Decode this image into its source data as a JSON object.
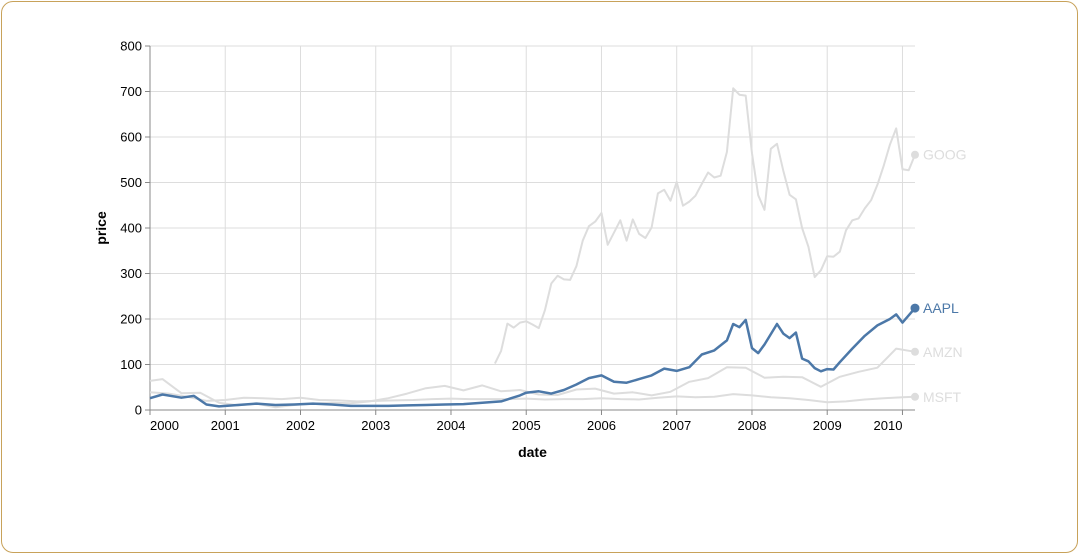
{
  "chart_data": {
    "type": "line",
    "xlabel": "date",
    "ylabel": "price",
    "ylim": [
      0,
      800
    ],
    "xlim": [
      "2000-01-01",
      "2010-03-01"
    ],
    "x_ticks": [
      "2000",
      "2001",
      "2002",
      "2003",
      "2004",
      "2005",
      "2006",
      "2007",
      "2008",
      "2009",
      "2010"
    ],
    "y_ticks": [
      0,
      100,
      200,
      300,
      400,
      500,
      600,
      700,
      800
    ],
    "grid": true,
    "legend": "end-of-line labels",
    "highlight_series": "AAPL",
    "colors": {
      "highlight": "#4c78a8",
      "muted": "#dddddd"
    },
    "series": [
      {
        "name": "MSFT",
        "dates": [
          "2000-01",
          "2000-04",
          "2000-07",
          "2000-10",
          "2001-01",
          "2001-04",
          "2001-07",
          "2001-10",
          "2002-01",
          "2002-04",
          "2002-07",
          "2002-10",
          "2003-01",
          "2003-04",
          "2003-07",
          "2003-10",
          "2004-01",
          "2004-04",
          "2004-07",
          "2004-10",
          "2005-01",
          "2005-04",
          "2005-07",
          "2005-10",
          "2006-01",
          "2006-04",
          "2006-07",
          "2006-10",
          "2007-01",
          "2007-04",
          "2007-07",
          "2007-10",
          "2008-01",
          "2008-04",
          "2008-07",
          "2008-10",
          "2009-01",
          "2009-04",
          "2009-07",
          "2009-10",
          "2010-01",
          "2010-03"
        ],
        "values": [
          39,
          36,
          29,
          20,
          22,
          27,
          26,
          24,
          27,
          22,
          21,
          19,
          20,
          21,
          22,
          24,
          25,
          24,
          24,
          24,
          25,
          23,
          24,
          24,
          26,
          24,
          23,
          27,
          30,
          28,
          29,
          35,
          32,
          28,
          26,
          22,
          17,
          19,
          23,
          26,
          28,
          29
        ]
      },
      {
        "name": "AMZN",
        "dates": [
          "2000-01",
          "2000-03",
          "2000-06",
          "2000-09",
          "2000-12",
          "2001-03",
          "2001-06",
          "2001-09",
          "2001-12",
          "2002-03",
          "2002-06",
          "2002-09",
          "2002-12",
          "2003-03",
          "2003-06",
          "2003-09",
          "2003-12",
          "2004-03",
          "2004-06",
          "2004-09",
          "2004-12",
          "2005-03",
          "2005-06",
          "2005-09",
          "2005-12",
          "2006-03",
          "2006-06",
          "2006-09",
          "2006-12",
          "2007-03",
          "2007-06",
          "2007-09",
          "2007-12",
          "2008-03",
          "2008-06",
          "2008-09",
          "2008-12",
          "2009-03",
          "2009-06",
          "2009-09",
          "2009-12",
          "2010-03"
        ],
        "values": [
          64,
          68,
          37,
          38,
          16,
          10,
          14,
          6,
          11,
          14,
          16,
          15,
          19,
          26,
          36,
          48,
          53,
          43,
          54,
          41,
          44,
          34,
          33,
          45,
          47,
          36,
          39,
          32,
          40,
          62,
          70,
          94,
          93,
          71,
          73,
          72,
          51,
          73,
          84,
          93,
          135,
          128
        ]
      },
      {
        "name": "GOOG",
        "dates": [
          "2004-08",
          "2004-09",
          "2004-10",
          "2004-11",
          "2004-12",
          "2005-01",
          "2005-02",
          "2005-03",
          "2005-04",
          "2005-05",
          "2005-06",
          "2005-07",
          "2005-08",
          "2005-09",
          "2005-10",
          "2005-11",
          "2005-12",
          "2006-01",
          "2006-02",
          "2006-03",
          "2006-04",
          "2006-05",
          "2006-06",
          "2006-07",
          "2006-08",
          "2006-09",
          "2006-10",
          "2006-11",
          "2006-12",
          "2007-01",
          "2007-02",
          "2007-03",
          "2007-04",
          "2007-05",
          "2007-06",
          "2007-07",
          "2007-08",
          "2007-09",
          "2007-10",
          "2007-11",
          "2007-12",
          "2008-01",
          "2008-02",
          "2008-03",
          "2008-04",
          "2008-05",
          "2008-06",
          "2008-07",
          "2008-08",
          "2008-09",
          "2008-10",
          "2008-11",
          "2008-12",
          "2009-01",
          "2009-02",
          "2009-03",
          "2009-04",
          "2009-05",
          "2009-06",
          "2009-07",
          "2009-08",
          "2009-09",
          "2009-10",
          "2009-11",
          "2009-12",
          "2010-01",
          "2010-02",
          "2010-03"
        ],
        "values": [
          102,
          130,
          190,
          181,
          192,
          195,
          188,
          180,
          220,
          278,
          295,
          287,
          286,
          316,
          372,
          404,
          414,
          433,
          363,
          390,
          417,
          372,
          419,
          387,
          378,
          401,
          476,
          484,
          460,
          501,
          449,
          458,
          471,
          497,
          522,
          511,
          515,
          567,
          707,
          693,
          691,
          564,
          472,
          440,
          574,
          585,
          526,
          473,
          463,
          400,
          359,
          292,
          307,
          338,
          337,
          348,
          395,
          417,
          421,
          443,
          461,
          495,
          536,
          583,
          619,
          529,
          527,
          561
        ]
      },
      {
        "name": "AAPL",
        "dates": [
          "2000-01",
          "2000-03",
          "2000-06",
          "2000-08",
          "2000-10",
          "2000-12",
          "2001-03",
          "2001-06",
          "2001-09",
          "2001-12",
          "2002-03",
          "2002-06",
          "2002-09",
          "2002-12",
          "2003-03",
          "2003-06",
          "2003-09",
          "2003-12",
          "2004-03",
          "2004-06",
          "2004-09",
          "2004-12",
          "2005-01",
          "2005-03",
          "2005-05",
          "2005-07",
          "2005-09",
          "2005-11",
          "2006-01",
          "2006-03",
          "2006-05",
          "2006-07",
          "2006-09",
          "2006-11",
          "2007-01",
          "2007-03",
          "2007-05",
          "2007-07",
          "2007-09",
          "2007-10",
          "2007-11",
          "2007-12",
          "2008-01",
          "2008-02",
          "2008-03",
          "2008-05",
          "2008-06",
          "2008-07",
          "2008-08",
          "2008-09",
          "2008-10",
          "2008-11",
          "2008-12",
          "2009-01",
          "2009-02",
          "2009-03",
          "2009-05",
          "2009-07",
          "2009-09",
          "2009-11",
          "2009-12",
          "2010-01",
          "2010-03"
        ],
        "values": [
          26,
          34,
          27,
          31,
          12,
          8,
          11,
          14,
          11,
          12,
          14,
          12,
          9,
          9,
          9,
          10,
          11,
          12,
          13,
          16,
          19,
          32,
          38,
          41,
          36,
          44,
          56,
          70,
          76,
          62,
          60,
          68,
          76,
          91,
          86,
          94,
          122,
          131,
          153,
          189,
          182,
          198,
          136,
          125,
          144,
          189,
          168,
          158,
          170,
          113,
          107,
          92,
          85,
          90,
          89,
          105,
          135,
          163,
          186,
          200,
          210,
          192,
          224
        ]
      }
    ]
  }
}
